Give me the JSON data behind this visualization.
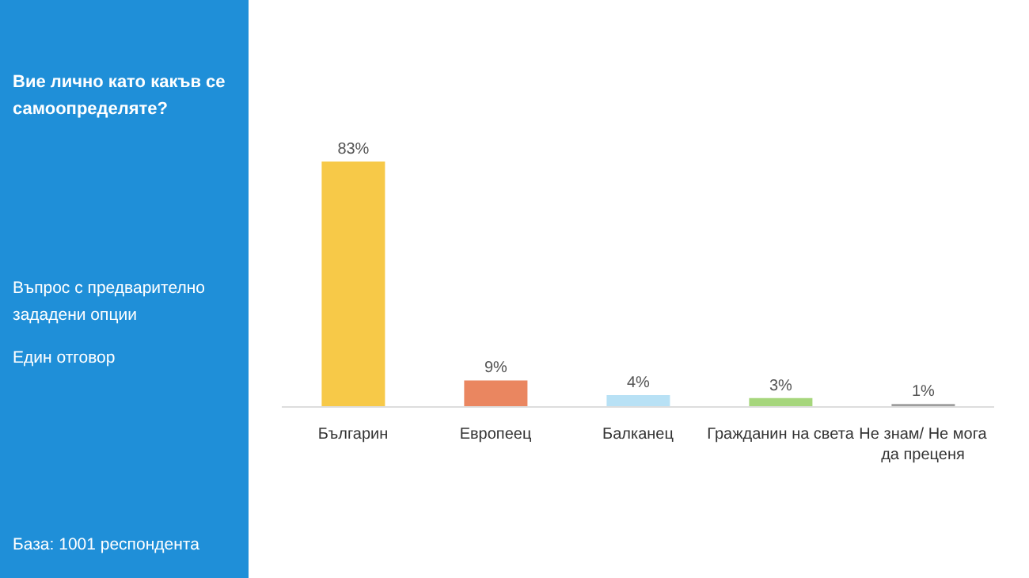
{
  "chart_data": {
    "type": "bar",
    "title": "Вие лично като какъв се самоопределяте?",
    "annotations": [
      "Въпрос с предварително зададени опции",
      "Един отговор",
      "База:  1001 респондента"
    ],
    "categories": [
      "Българин",
      "Европеец",
      "Балканец",
      "Гражданин на света",
      "Не знам/ Не мога да преценя"
    ],
    "values": [
      83,
      9,
      4,
      3,
      1
    ],
    "colors": [
      "#f7c948",
      "#ea8660",
      "#b8e1f5",
      "#a6d67c",
      "#9e9e9e"
    ],
    "value_labels": [
      "83%",
      "9%",
      "4%",
      "3%",
      "1%"
    ],
    "grid": false
  }
}
